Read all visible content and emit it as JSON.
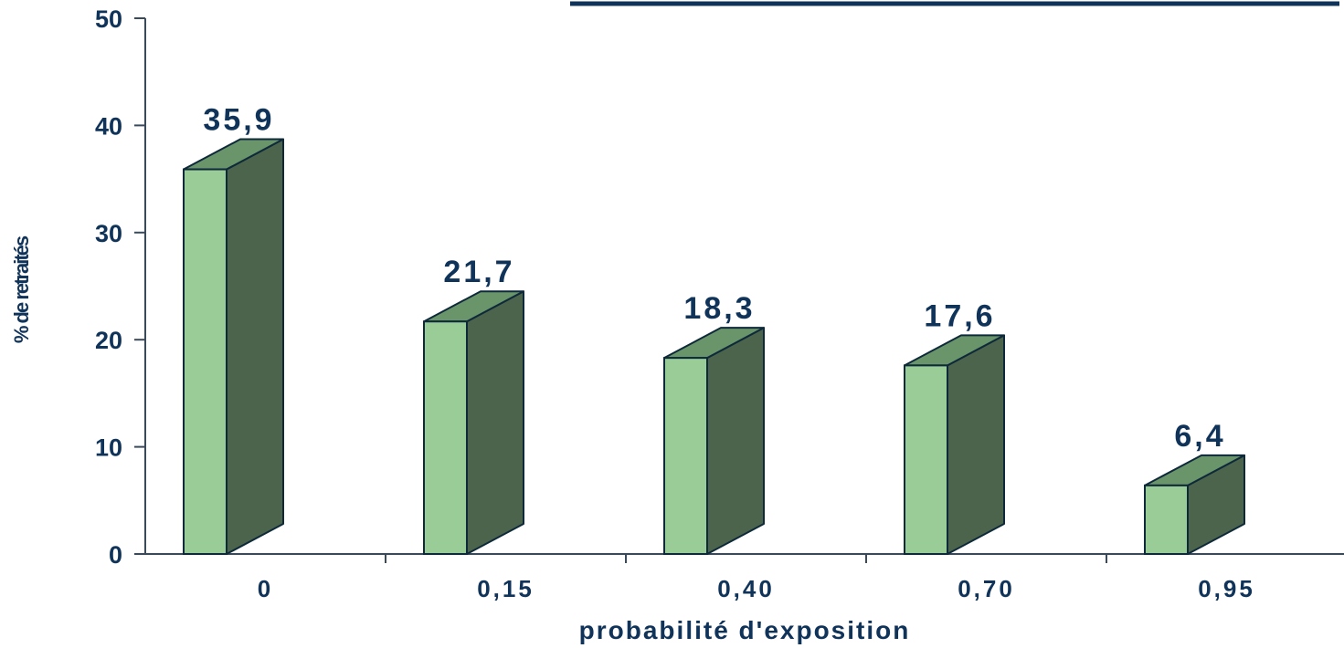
{
  "chart_data": {
    "type": "bar",
    "title": "",
    "categories": [
      "0",
      "0,15",
      "0,40",
      "0,70",
      "0,95"
    ],
    "values": [
      35.9,
      21.7,
      18.3,
      17.6,
      6.4
    ],
    "data_labels": [
      "35,9",
      "21,7",
      "18,3",
      "17,6",
      "6,4"
    ],
    "xlabel": "probabilité d'exposition",
    "ylabel": "% de retraités",
    "ylim": [
      0,
      50
    ],
    "yticks": [
      0,
      10,
      20,
      30,
      40,
      50
    ],
    "grid": false,
    "style": "3d-column"
  },
  "colors": {
    "bar_front": "#9acc98",
    "bar_side": "#4c644c",
    "bar_top": "#6a946a",
    "bar_outline": "#0e2a3a",
    "axis": "#3a4a5a",
    "text": "#10335a",
    "header_line": "#10335a"
  }
}
